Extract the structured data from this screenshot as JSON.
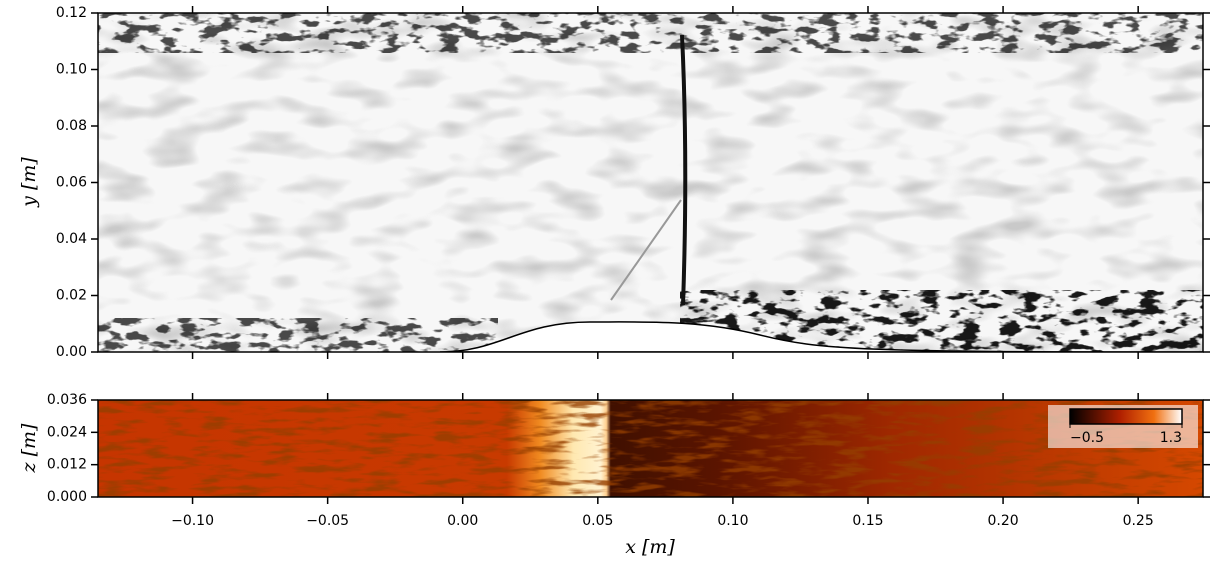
{
  "chart_data": [
    {
      "type": "image",
      "ylabel": "y [m]",
      "xlim": [
        -0.135,
        0.274
      ],
      "xticks": [
        -0.1,
        -0.05,
        0.0,
        0.05,
        0.1,
        0.15,
        0.2,
        0.25
      ],
      "ylim": [
        0,
        0.12
      ],
      "yticks": [
        {
          "value": 0,
          "label": "0.00"
        },
        0.02,
        0.04,
        0.06,
        0.08,
        {
          "value": 0.1,
          "label": "0.10"
        },
        0.12
      ]
    },
    {
      "type": "image",
      "xlabel": "x [m]",
      "ylabel": "z [m]",
      "xlim": [
        -0.135,
        0.274
      ],
      "xticks": [
        {
          "value": -0.1,
          "label": "−0.10"
        },
        {
          "value": -0.05,
          "label": "−0.05"
        },
        {
          "value": 0,
          "label": "0.00"
        },
        0.05,
        {
          "value": 0.1,
          "label": "0.10"
        },
        0.15,
        {
          "value": 0.2,
          "label": "0.20"
        },
        0.25
      ],
      "ylim": [
        0,
        0.036
      ],
      "yticks": [
        {
          "value": 0,
          "label": "0.000"
        },
        0.012,
        0.024,
        0.036
      ],
      "colorbar": {
        "lim": [
          -0.5,
          1.3
        ],
        "ticks": [
          {
            "value": -0.5,
            "label": "−0.5"
          },
          1.3
        ]
      }
    }
  ]
}
